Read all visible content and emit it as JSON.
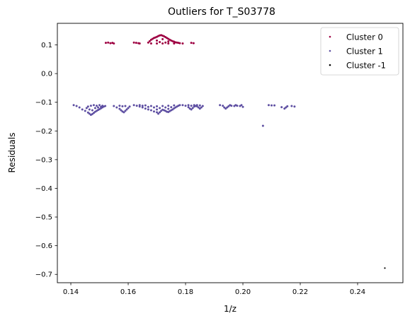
{
  "chart_data": {
    "type": "scatter",
    "title": "Outliers for T_S03778",
    "xlabel": "1/z",
    "ylabel": "Residuals",
    "xlim": [
      0.1353,
      0.2558
    ],
    "ylim": [
      -0.729,
      0.1752
    ],
    "xticks": [
      0.14,
      0.16,
      0.18,
      0.2,
      0.22,
      0.24
    ],
    "xtick_labels": [
      "0.14",
      "0.16",
      "0.18",
      "0.20",
      "0.22",
      "0.24"
    ],
    "yticks": [
      0.1,
      0.0,
      -0.1,
      -0.2,
      -0.3,
      -0.4,
      -0.5,
      -0.6,
      -0.7
    ],
    "ytick_labels": [
      "0.1",
      "0.0",
      "−0.1",
      "−0.2",
      "−0.3",
      "−0.4",
      "−0.5",
      "−0.6",
      "−0.7"
    ],
    "grid": false,
    "legend_position": "top-right",
    "series": [
      {
        "name": "Cluster 0",
        "color": "#9e0142",
        "points": [
          [
            0.1522,
            0.107
          ],
          [
            0.153,
            0.108
          ],
          [
            0.1538,
            0.106
          ],
          [
            0.1545,
            0.107
          ],
          [
            0.155,
            0.105
          ],
          [
            0.162,
            0.108
          ],
          [
            0.1628,
            0.107
          ],
          [
            0.1636,
            0.106
          ],
          [
            0.164,
            0.105
          ],
          [
            0.167,
            0.108
          ],
          [
            0.1675,
            0.113
          ],
          [
            0.168,
            0.118
          ],
          [
            0.1685,
            0.121
          ],
          [
            0.169,
            0.124
          ],
          [
            0.1695,
            0.126
          ],
          [
            0.17,
            0.128
          ],
          [
            0.1705,
            0.131
          ],
          [
            0.171,
            0.133
          ],
          [
            0.1715,
            0.134
          ],
          [
            0.172,
            0.132
          ],
          [
            0.1725,
            0.13
          ],
          [
            0.173,
            0.127
          ],
          [
            0.1735,
            0.124
          ],
          [
            0.174,
            0.121
          ],
          [
            0.1745,
            0.118
          ],
          [
            0.175,
            0.115
          ],
          [
            0.1755,
            0.113
          ],
          [
            0.176,
            0.111
          ],
          [
            0.1765,
            0.109
          ],
          [
            0.177,
            0.108
          ],
          [
            0.1775,
            0.107
          ],
          [
            0.178,
            0.106
          ],
          [
            0.179,
            0.105
          ],
          [
            0.168,
            0.105
          ],
          [
            0.17,
            0.105
          ],
          [
            0.172,
            0.105
          ],
          [
            0.174,
            0.105
          ],
          [
            0.176,
            0.105
          ],
          [
            0.17,
            0.115
          ],
          [
            0.172,
            0.12
          ],
          [
            0.174,
            0.112
          ],
          [
            0.171,
            0.11
          ],
          [
            0.173,
            0.108
          ],
          [
            0.182,
            0.107
          ],
          [
            0.1828,
            0.106
          ]
        ]
      },
      {
        "name": "Cluster 1",
        "color": "#5e4fa2",
        "points": [
          [
            0.141,
            -0.11
          ],
          [
            0.142,
            -0.113
          ],
          [
            0.143,
            -0.118
          ],
          [
            0.144,
            -0.125
          ],
          [
            0.145,
            -0.13
          ],
          [
            0.146,
            -0.136
          ],
          [
            0.1465,
            -0.14
          ],
          [
            0.147,
            -0.144
          ],
          [
            0.1475,
            -0.141
          ],
          [
            0.148,
            -0.137
          ],
          [
            0.1485,
            -0.133
          ],
          [
            0.149,
            -0.13
          ],
          [
            0.1495,
            -0.127
          ],
          [
            0.15,
            -0.124
          ],
          [
            0.1505,
            -0.121
          ],
          [
            0.151,
            -0.118
          ],
          [
            0.1515,
            -0.115
          ],
          [
            0.152,
            -0.113
          ],
          [
            0.146,
            -0.115
          ],
          [
            0.147,
            -0.112
          ],
          [
            0.148,
            -0.11
          ],
          [
            0.149,
            -0.112
          ],
          [
            0.15,
            -0.11
          ],
          [
            0.151,
            -0.112
          ],
          [
            0.1465,
            -0.125
          ],
          [
            0.1475,
            -0.128
          ],
          [
            0.1485,
            -0.12
          ],
          [
            0.1495,
            -0.118
          ],
          [
            0.1505,
            -0.116
          ],
          [
            0.1455,
            -0.12
          ],
          [
            0.155,
            -0.113
          ],
          [
            0.156,
            -0.118
          ],
          [
            0.157,
            -0.123
          ],
          [
            0.1575,
            -0.128
          ],
          [
            0.158,
            -0.132
          ],
          [
            0.1585,
            -0.135
          ],
          [
            0.159,
            -0.13
          ],
          [
            0.1595,
            -0.125
          ],
          [
            0.16,
            -0.12
          ],
          [
            0.1605,
            -0.115
          ],
          [
            0.157,
            -0.112
          ],
          [
            0.158,
            -0.114
          ],
          [
            0.159,
            -0.113
          ],
          [
            0.162,
            -0.11
          ],
          [
            0.163,
            -0.112
          ],
          [
            0.164,
            -0.115
          ],
          [
            0.165,
            -0.118
          ],
          [
            0.166,
            -0.122
          ],
          [
            0.167,
            -0.125
          ],
          [
            0.168,
            -0.128
          ],
          [
            0.169,
            -0.132
          ],
          [
            0.17,
            -0.135
          ],
          [
            0.1705,
            -0.14
          ],
          [
            0.171,
            -0.135
          ],
          [
            0.1715,
            -0.13
          ],
          [
            0.172,
            -0.126
          ],
          [
            0.1725,
            -0.128
          ],
          [
            0.173,
            -0.13
          ],
          [
            0.1735,
            -0.133
          ],
          [
            0.174,
            -0.134
          ],
          [
            0.1745,
            -0.131
          ],
          [
            0.175,
            -0.128
          ],
          [
            0.1755,
            -0.125
          ],
          [
            0.176,
            -0.121
          ],
          [
            0.1765,
            -0.118
          ],
          [
            0.177,
            -0.115
          ],
          [
            0.1775,
            -0.112
          ],
          [
            0.178,
            -0.11
          ],
          [
            0.164,
            -0.11
          ],
          [
            0.166,
            -0.111
          ],
          [
            0.168,
            -0.113
          ],
          [
            0.17,
            -0.114
          ],
          [
            0.172,
            -0.113
          ],
          [
            0.174,
            -0.112
          ],
          [
            0.176,
            -0.111
          ],
          [
            0.165,
            -0.112
          ],
          [
            0.169,
            -0.118
          ],
          [
            0.171,
            -0.12
          ],
          [
            0.173,
            -0.118
          ],
          [
            0.175,
            -0.117
          ],
          [
            0.167,
            -0.116
          ],
          [
            0.17,
            -0.125
          ],
          [
            0.174,
            -0.123
          ],
          [
            0.179,
            -0.11
          ],
          [
            0.18,
            -0.112
          ],
          [
            0.181,
            -0.117
          ],
          [
            0.1815,
            -0.122
          ],
          [
            0.182,
            -0.125
          ],
          [
            0.1825,
            -0.12
          ],
          [
            0.183,
            -0.115
          ],
          [
            0.1835,
            -0.113
          ],
          [
            0.184,
            -0.114
          ],
          [
            0.1845,
            -0.118
          ],
          [
            0.185,
            -0.122
          ],
          [
            0.1855,
            -0.118
          ],
          [
            0.186,
            -0.113
          ],
          [
            0.181,
            -0.11
          ],
          [
            0.183,
            -0.11
          ],
          [
            0.185,
            -0.111
          ],
          [
            0.182,
            -0.112
          ],
          [
            0.184,
            -0.11
          ],
          [
            0.192,
            -0.11
          ],
          [
            0.193,
            -0.112
          ],
          [
            0.1935,
            -0.118
          ],
          [
            0.194,
            -0.122
          ],
          [
            0.1945,
            -0.118
          ],
          [
            0.195,
            -0.114
          ],
          [
            0.196,
            -0.112
          ],
          [
            0.197,
            -0.113
          ],
          [
            0.198,
            -0.112
          ],
          [
            0.199,
            -0.113
          ],
          [
            0.2,
            -0.116
          ],
          [
            0.1955,
            -0.11
          ],
          [
            0.1975,
            -0.11
          ],
          [
            0.1995,
            -0.11
          ],
          [
            0.207,
            -0.182
          ],
          [
            0.209,
            -0.11
          ],
          [
            0.21,
            -0.111
          ],
          [
            0.211,
            -0.111
          ],
          [
            0.2135,
            -0.117
          ],
          [
            0.2145,
            -0.122
          ],
          [
            0.215,
            -0.118
          ],
          [
            0.2155,
            -0.114
          ],
          [
            0.217,
            -0.113
          ],
          [
            0.218,
            -0.115
          ]
        ]
      },
      {
        "name": "Cluster -1",
        "color": "#000000",
        "points": [
          [
            0.2495,
            -0.678
          ]
        ]
      }
    ]
  }
}
